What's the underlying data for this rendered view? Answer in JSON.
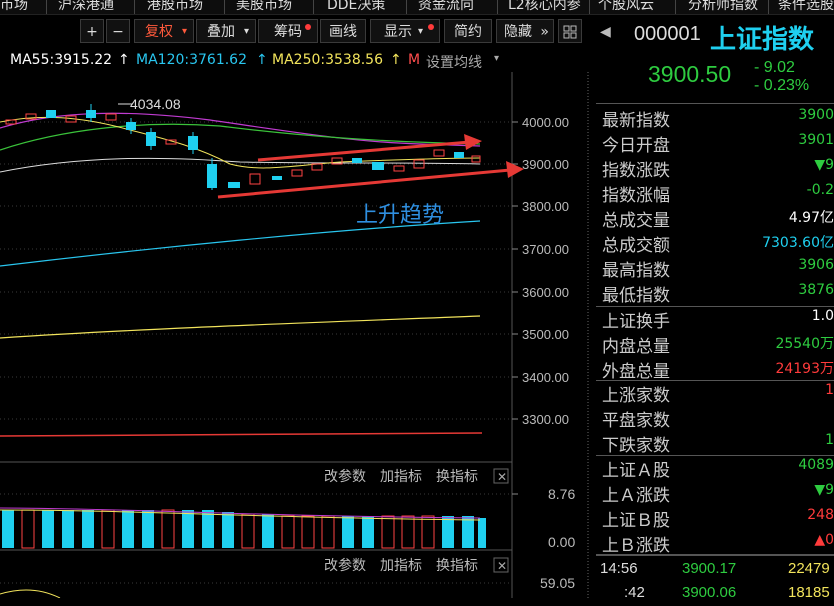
{
  "top_menu": [
    "市场",
    "沪深港通",
    "港股市场",
    "美股市场",
    "DDE决策",
    "资金流向",
    "L2核心内参",
    "个股风云",
    "分析师指数",
    "条件选股"
  ],
  "toolbar": {
    "plus": "+",
    "minus": "−",
    "fuquan": "复权",
    "diejia": "叠加",
    "chouma": "筹码",
    "huaxian": "画线",
    "xianshi": "显示",
    "jianyue": "简约",
    "yincang": "隐藏",
    "yincang_arrows": "»"
  },
  "ma": {
    "ma55": "MA55:3915.22",
    "ma120": "MA120:3761.62",
    "ma250": "MA250:3538.56",
    "ma_m": "M",
    "settings": "设置均线",
    "arrow": "↑",
    "colors": {
      "ma55": "#ffffff",
      "ma120": "#29c6ef",
      "ma250": "#f2e45c",
      "settings": "#ff4d4d"
    }
  },
  "chart": {
    "price_labels": [
      "4000.00",
      "3900.00",
      "3800.00",
      "3700.00",
      "3600.00",
      "3500.00",
      "3400.00",
      "3300.00"
    ],
    "high_annotation": "4034.08",
    "annotation_text": "上升趋势",
    "sub1": {
      "gaicanshu": "改参数",
      "jiazhibiao": "加指标",
      "huanzhibiao": "换指标",
      "top": "8.76",
      "bottom": "0.00"
    },
    "sub2": {
      "gaicanshu": "改参数",
      "jiazhibiao": "加指标",
      "huanzhibiao": "换指标",
      "top": "59.05"
    }
  },
  "quote": {
    "code": "000001",
    "name": "上证指数",
    "price": "3900.50",
    "change": "- 9.02",
    "change_pct": "- 0.23%"
  },
  "rows": [
    {
      "label": "最新指数",
      "value": "3900",
      "cls": "green"
    },
    {
      "label": "今日开盘",
      "value": "3901",
      "cls": "green"
    },
    {
      "label": "指数涨跌",
      "value": "▼9",
      "cls": "green"
    },
    {
      "label": "指数涨幅",
      "value": "-0.2",
      "cls": "green"
    },
    {
      "label": "总成交量",
      "value": "4.97亿",
      "cls": "white"
    },
    {
      "label": "总成交额",
      "value": "7303.60亿",
      "cls": "cyan"
    },
    {
      "label": "最高指数",
      "value": "3906",
      "cls": "green"
    },
    {
      "label": "最低指数",
      "value": "3876",
      "cls": "green"
    }
  ],
  "rows2": [
    {
      "label": "上证换手",
      "value": "1.0",
      "cls": "white"
    },
    {
      "label": "内盘总量",
      "value": "25540万",
      "cls": "green"
    },
    {
      "label": "外盘总量",
      "value": "24193万",
      "cls": "red"
    }
  ],
  "rows3": [
    {
      "label": "上涨家数",
      "value": "1",
      "cls": "red"
    },
    {
      "label": "平盘家数",
      "value": "",
      "cls": "white"
    },
    {
      "label": "下跌家数",
      "value": "1",
      "cls": "green"
    }
  ],
  "rows4": [
    {
      "label": "上证Ａ股",
      "value": "4089",
      "cls": "green"
    },
    {
      "label": "上Ａ涨跌",
      "value": "▼9",
      "cls": "green"
    },
    {
      "label": "上证Ｂ股",
      "value": "248",
      "cls": "red"
    },
    {
      "label": "上Ｂ涨跌",
      "value": "▲0",
      "cls": "red"
    }
  ],
  "ticks": [
    {
      "time": "14:56",
      "price": "3900.17",
      "vol": "22479"
    },
    {
      "time": ":42",
      "price": "3900.06",
      "vol": "18185"
    }
  ]
}
